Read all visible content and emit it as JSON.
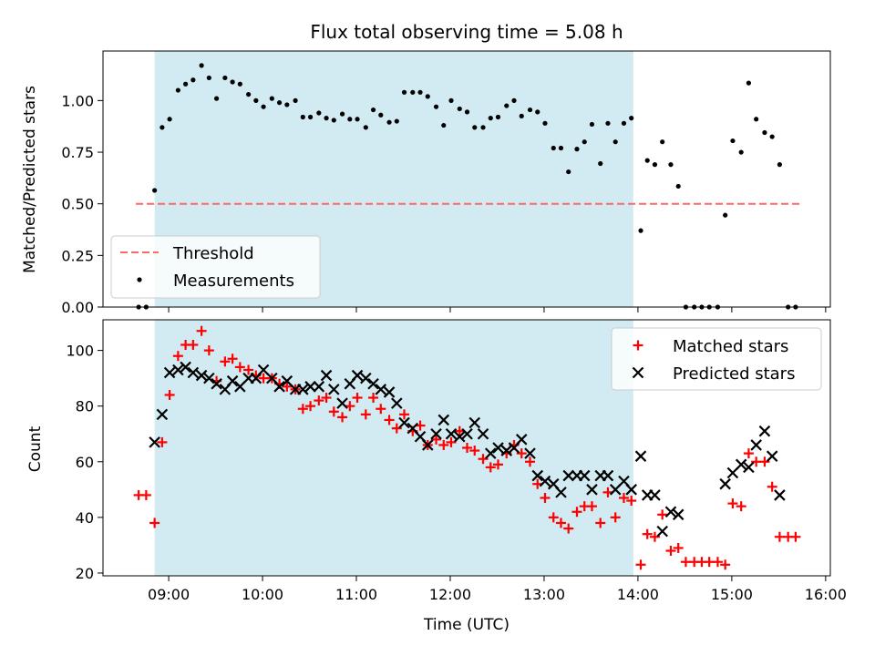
{
  "chart_data": [
    {
      "type": "scatter",
      "title": "Flux total observing time = 5.08 h",
      "xlabel": "",
      "ylabel": "Matched/Predicted stars",
      "xlim": [
        8.3,
        16.05
      ],
      "ylim": [
        0,
        1.24
      ],
      "yticks": [
        0.0,
        0.25,
        0.5,
        0.75,
        1.0
      ],
      "ytick_labels": [
        "0.00",
        "0.25",
        "0.50",
        "0.75",
        "1.00"
      ],
      "shaded_region": {
        "x": [
          8.85,
          13.95
        ],
        "color": "#add8e6"
      },
      "threshold": {
        "name": "Threshold",
        "y": 0.5,
        "x": [
          8.65,
          15.75
        ],
        "color": "#ff6666"
      },
      "legend": {
        "location": "lower left",
        "entries": [
          "Threshold",
          "Measurements"
        ]
      },
      "series": [
        {
          "name": "Measurements",
          "color": "#000000",
          "x": [
            8.68,
            8.76,
            8.85,
            8.93,
            9.01,
            9.1,
            9.18,
            9.26,
            9.35,
            9.43,
            9.51,
            9.6,
            9.68,
            9.76,
            9.85,
            9.93,
            10.01,
            10.1,
            10.18,
            10.26,
            10.35,
            10.43,
            10.51,
            10.6,
            10.68,
            10.76,
            10.85,
            10.93,
            11.01,
            11.1,
            11.18,
            11.26,
            11.35,
            11.43,
            11.51,
            11.6,
            11.68,
            11.76,
            11.85,
            11.93,
            12.01,
            12.1,
            12.18,
            12.26,
            12.35,
            12.43,
            12.51,
            12.6,
            12.68,
            12.76,
            12.85,
            12.93,
            13.01,
            13.1,
            13.18,
            13.26,
            13.35,
            13.43,
            13.51,
            13.6,
            13.68,
            13.76,
            13.85,
            13.93,
            14.03,
            14.1,
            14.18,
            14.26,
            14.35,
            14.43,
            14.51,
            14.6,
            14.68,
            14.76,
            14.85,
            14.93,
            15.01,
            15.1,
            15.18,
            15.26,
            15.35,
            15.43,
            15.51,
            15.6,
            15.68
          ],
          "y": [
            0.0,
            0.0,
            0.565,
            0.87,
            0.91,
            1.05,
            1.08,
            1.1,
            1.17,
            1.11,
            1.01,
            1.11,
            1.09,
            1.08,
            1.03,
            1.0,
            0.97,
            1.01,
            0.99,
            0.98,
            1.0,
            0.92,
            0.92,
            0.94,
            0.915,
            0.905,
            0.935,
            0.91,
            0.91,
            0.87,
            0.955,
            0.93,
            0.895,
            0.9,
            1.04,
            1.04,
            1.04,
            1.02,
            0.97,
            0.88,
            1.0,
            0.96,
            0.945,
            0.87,
            0.87,
            0.915,
            0.92,
            0.975,
            1.0,
            0.925,
            0.955,
            0.945,
            0.89,
            0.77,
            0.77,
            0.655,
            0.765,
            0.8,
            0.885,
            0.695,
            0.89,
            0.8,
            0.89,
            0.915,
            0.37,
            0.71,
            0.69,
            0.8,
            0.69,
            0.585,
            0.0,
            0.0,
            0.0,
            0.0,
            0.0,
            0.445,
            0.805,
            0.75,
            1.085,
            0.91,
            0.845,
            0.825,
            0.69,
            0.0,
            0.0
          ]
        }
      ]
    },
    {
      "type": "scatter",
      "title": "",
      "xlabel": "Time (UTC)",
      "ylabel": "Count",
      "xlim": [
        8.3,
        16.05
      ],
      "ylim": [
        19,
        111
      ],
      "xticks": [
        9,
        10,
        11,
        12,
        13,
        14,
        15,
        16
      ],
      "xtick_labels": [
        "09:00",
        "10:00",
        "11:00",
        "12:00",
        "13:00",
        "14:00",
        "15:00",
        "16:00"
      ],
      "yticks": [
        20,
        40,
        60,
        80,
        100
      ],
      "ytick_labels": [
        "20",
        "40",
        "60",
        "80",
        "100"
      ],
      "shaded_region": {
        "x": [
          8.85,
          13.95
        ],
        "color": "#add8e6"
      },
      "legend": {
        "location": "upper right",
        "entries": [
          "Matched stars",
          "Predicted stars"
        ]
      },
      "series": [
        {
          "name": "Matched stars",
          "marker": "+",
          "color": "#ff0000",
          "x": [
            8.68,
            8.76,
            8.85,
            8.93,
            9.01,
            9.1,
            9.18,
            9.26,
            9.35,
            9.43,
            9.51,
            9.6,
            9.68,
            9.76,
            9.85,
            9.93,
            10.01,
            10.1,
            10.18,
            10.26,
            10.35,
            10.43,
            10.51,
            10.6,
            10.68,
            10.76,
            10.85,
            10.93,
            11.01,
            11.1,
            11.18,
            11.26,
            11.35,
            11.43,
            11.51,
            11.6,
            11.68,
            11.76,
            11.85,
            11.93,
            12.01,
            12.1,
            12.18,
            12.26,
            12.35,
            12.43,
            12.51,
            12.6,
            12.68,
            12.76,
            12.85,
            12.93,
            13.01,
            13.1,
            13.18,
            13.26,
            13.35,
            13.43,
            13.51,
            13.6,
            13.68,
            13.76,
            13.85,
            13.93,
            14.03,
            14.1,
            14.18,
            14.26,
            14.35,
            14.43,
            14.51,
            14.6,
            14.68,
            14.76,
            14.85,
            14.93,
            15.01,
            15.1,
            15.18,
            15.26,
            15.35,
            15.43,
            15.51,
            15.6,
            15.68
          ],
          "y": [
            48,
            48,
            38,
            67,
            84,
            98,
            102,
            102,
            107,
            100,
            89,
            96,
            97,
            94,
            93,
            91,
            90,
            90,
            88,
            87,
            86,
            79,
            80,
            82,
            83,
            78,
            76,
            80,
            83,
            77,
            83,
            79,
            75,
            72,
            77,
            71,
            73,
            66,
            68,
            66,
            67,
            71,
            65,
            64,
            61,
            58,
            59,
            63,
            66,
            63,
            60,
            52,
            47,
            40,
            38,
            36,
            42,
            44,
            44,
            38,
            49,
            40,
            47,
            46,
            23,
            34,
            33,
            41,
            28,
            29,
            24,
            24,
            24,
            24,
            24,
            23,
            45,
            44,
            63,
            60,
            60,
            51,
            33,
            33,
            33
          ]
        },
        {
          "name": "Predicted stars",
          "marker": "x",
          "color": "#000000",
          "x": [
            8.85,
            8.93,
            9.01,
            9.1,
            9.18,
            9.26,
            9.35,
            9.43,
            9.51,
            9.6,
            9.68,
            9.76,
            9.85,
            9.93,
            10.01,
            10.1,
            10.18,
            10.26,
            10.35,
            10.43,
            10.51,
            10.6,
            10.68,
            10.76,
            10.85,
            10.93,
            11.01,
            11.1,
            11.18,
            11.26,
            11.35,
            11.43,
            11.51,
            11.6,
            11.68,
            11.76,
            11.85,
            11.93,
            12.01,
            12.1,
            12.18,
            12.26,
            12.35,
            12.43,
            12.51,
            12.6,
            12.68,
            12.76,
            12.85,
            12.93,
            13.01,
            13.1,
            13.18,
            13.26,
            13.35,
            13.43,
            13.51,
            13.6,
            13.68,
            13.76,
            13.85,
            13.93,
            14.03,
            14.1,
            14.18,
            14.26,
            14.35,
            14.43,
            14.93,
            15.01,
            15.1,
            15.18,
            15.26,
            15.35,
            15.43,
            15.51
          ],
          "y": [
            67,
            77,
            92,
            93,
            94,
            92,
            91,
            90,
            88,
            86,
            89,
            87,
            90,
            90,
            93,
            90,
            87,
            89,
            86,
            86,
            87,
            87,
            91,
            86,
            81,
            88,
            91,
            90,
            88,
            86,
            85,
            81,
            74,
            72,
            69,
            66,
            70,
            75,
            70,
            69,
            70,
            74,
            70,
            63,
            65,
            64,
            65,
            68,
            63,
            55,
            53,
            52,
            49,
            55,
            55,
            55,
            50,
            55,
            55,
            50,
            53,
            50,
            62,
            48,
            48,
            35,
            42,
            41,
            52,
            56,
            59,
            58,
            66,
            71,
            62,
            48
          ]
        }
      ]
    }
  ]
}
